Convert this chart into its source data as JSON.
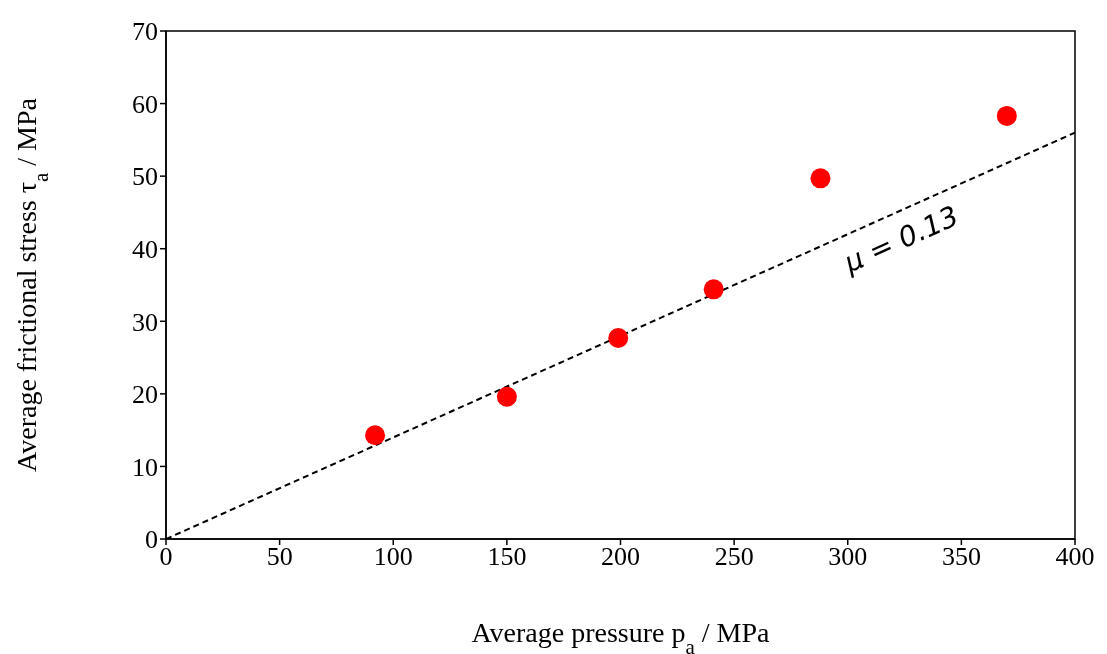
{
  "chart_data": {
    "type": "scatter",
    "xlabel": "Average pressure p$_{a}$ / MPa",
    "ylabel": "Average frictional stress  τ$_{a}$ / MPa",
    "xlim": [
      0,
      400
    ],
    "xticks": [
      0,
      50,
      100,
      150,
      200,
      250,
      300,
      350,
      400
    ],
    "ylim": [
      0,
      70
    ],
    "yticks": [
      0,
      10,
      20,
      30,
      40,
      50,
      60,
      70
    ],
    "grid": false,
    "legend": false,
    "series": [
      {
        "color": "#ff0000",
        "marker": "circle",
        "x": [
          92,
          150,
          199,
          241,
          288,
          370
        ],
        "values": [
          14.3,
          19.6,
          27.7,
          34.4,
          49.7,
          58.3
        ]
      },
      {
        "type": "line",
        "color": "#000000",
        "marker": "none",
        "line_style": "dashed",
        "x": [
          0,
          400
        ],
        "values": [
          0,
          56
        ]
      }
    ],
    "annotations": [
      "μ = 0.13"
    ]
  }
}
